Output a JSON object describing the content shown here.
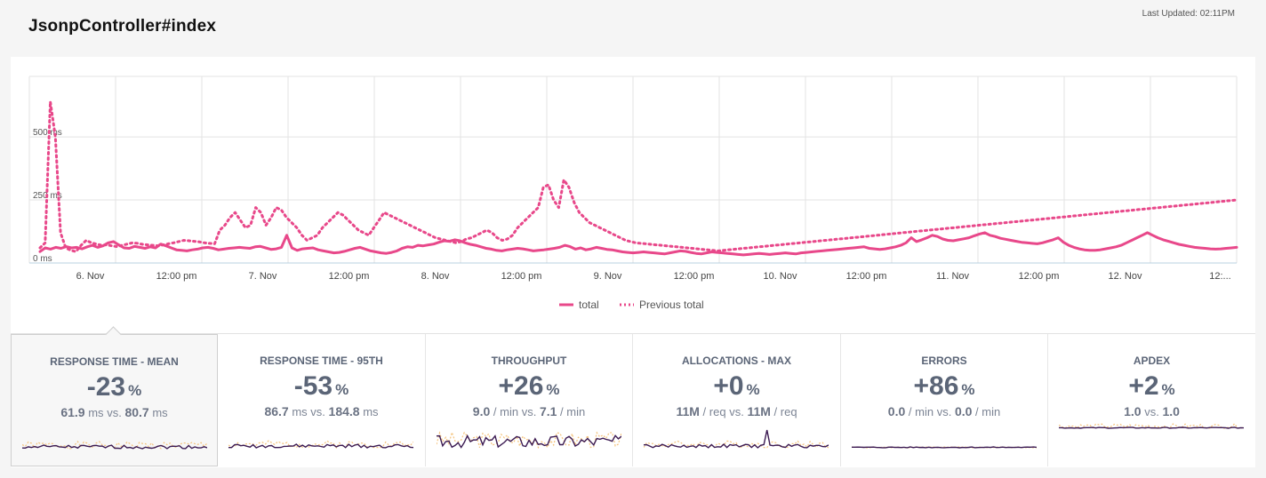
{
  "header": {
    "title": "JsonpController#index",
    "last_updated": "Last Updated: 02:11PM"
  },
  "chart_data": {
    "type": "line",
    "y_ticks": [
      {
        "v": 0,
        "label": "0 ms"
      },
      {
        "v": 250,
        "label": "250 ms"
      },
      {
        "v": 500,
        "label": "500 ms"
      }
    ],
    "ylim": [
      0,
      740
    ],
    "x_ticks": [
      "6. Nov",
      "12:00 pm",
      "7. Nov",
      "12:00 pm",
      "8. Nov",
      "12:00 pm",
      "9. Nov",
      "12:00 pm",
      "10. Nov",
      "12:00 pm",
      "11. Nov",
      "12:00 pm",
      "12. Nov",
      "12:..."
    ],
    "grid": true,
    "legend_position": "bottom-center",
    "series": [
      {
        "name": "total",
        "style": "solid",
        "color": "#e8488a",
        "values": [
          45,
          60,
          55,
          62,
          58,
          65,
          60,
          62,
          56,
          64,
          70,
          62,
          68,
          80,
          85,
          72,
          60,
          58,
          66,
          62,
          58,
          64,
          60,
          75,
          68,
          60,
          52,
          50,
          48,
          52,
          55,
          60,
          62,
          58,
          52,
          55,
          58,
          60,
          62,
          60,
          58,
          64,
          66,
          60,
          54,
          56,
          62,
          110,
          60,
          50,
          56,
          58,
          60,
          52,
          48,
          44,
          40,
          42,
          46,
          52,
          58,
          62,
          55,
          48,
          44,
          40,
          38,
          42,
          48,
          58,
          64,
          62,
          70,
          68,
          72,
          75,
          82,
          88,
          86,
          92,
          88,
          80,
          74,
          70,
          64,
          58,
          55,
          50,
          48,
          52,
          55,
          58,
          56,
          52,
          48,
          50,
          52,
          55,
          58,
          62,
          70,
          65,
          55,
          60,
          52,
          56,
          62,
          58,
          54,
          52,
          48,
          44,
          42,
          40,
          42,
          44,
          42,
          40,
          38,
          36,
          40,
          44,
          48,
          46,
          42,
          38,
          36,
          40,
          44,
          42,
          40,
          38,
          36,
          34,
          32,
          34,
          36,
          38,
          36,
          34,
          36,
          38,
          40,
          38,
          36,
          40,
          42,
          44,
          46,
          48,
          50,
          52,
          54,
          56,
          58,
          60,
          62,
          64,
          58,
          56,
          54,
          56,
          60,
          64,
          70,
          80,
          100,
          85,
          92,
          100,
          110,
          105,
          95,
          90,
          88,
          92,
          96,
          100,
          108,
          115,
          120,
          110,
          105,
          98,
          94,
          90,
          86,
          82,
          80,
          78,
          76,
          80,
          86,
          92,
          100,
          82,
          70,
          62,
          56,
          52,
          50,
          50,
          52,
          56,
          60,
          64,
          70,
          80,
          90,
          100,
          110,
          120,
          110,
          100,
          92,
          86,
          80,
          74,
          70,
          66,
          62,
          60,
          58,
          56,
          55,
          56,
          58,
          60,
          62
        ]
      },
      {
        "name": "Previous total",
        "style": "dotted",
        "color": "#e8488a",
        "values": [
          60,
          80,
          640,
          500,
          120,
          60,
          50,
          45,
          70,
          90,
          80,
          75,
          70,
          72,
          68,
          65,
          70,
          75,
          80,
          78,
          74,
          72,
          70,
          68,
          72,
          76,
          80,
          85,
          90,
          88,
          86,
          84,
          80,
          78,
          76,
          130,
          150,
          180,
          200,
          170,
          140,
          150,
          220,
          200,
          150,
          180,
          220,
          210,
          180,
          160,
          140,
          110,
          90,
          100,
          110,
          140,
          160,
          180,
          200,
          190,
          170,
          150,
          130,
          120,
          110,
          140,
          170,
          200,
          190,
          180,
          170,
          160,
          150,
          140,
          130,
          120,
          110,
          100,
          95,
          90,
          85,
          80,
          85,
          95,
          100,
          110,
          120,
          130,
          120,
          100,
          90,
          95,
          110,
          140,
          160,
          180,
          200,
          220,
          300,
          310,
          250,
          220,
          330,
          300,
          240,
          200,
          180,
          160,
          150,
          140,
          130,
          120,
          110,
          100,
          90,
          85,
          80,
          78,
          76,
          74,
          72,
          70,
          68,
          66,
          64,
          62,
          60,
          58,
          56,
          54,
          52,
          50,
          48,
          50,
          52,
          54,
          56,
          58,
          60,
          62,
          64,
          66,
          68,
          70,
          72,
          74,
          76,
          78,
          80,
          82,
          84,
          86,
          88,
          90,
          92,
          94,
          96,
          98,
          100,
          102,
          104,
          106,
          108,
          110,
          112,
          114,
          116,
          118,
          120,
          122,
          124,
          126,
          128,
          130,
          132,
          134,
          136,
          138,
          140,
          142,
          144,
          146,
          148,
          150,
          152,
          154,
          156,
          158,
          160,
          162,
          164,
          166,
          168,
          170,
          172,
          174,
          176,
          178,
          180,
          182,
          184,
          186,
          188,
          190,
          192,
          194,
          196,
          198,
          200,
          202,
          204,
          206,
          208,
          210,
          212,
          214,
          216,
          218,
          220,
          222,
          224,
          226,
          228,
          230,
          232,
          234,
          236,
          238,
          240,
          242,
          244,
          246,
          248,
          250
        ]
      }
    ]
  },
  "metrics": [
    {
      "label": "RESPONSE TIME - MEAN",
      "change": "-23",
      "pct": "%",
      "a": "61.9",
      "a_unit": "ms",
      "vs": "vs.",
      "b": "80.7",
      "b_unit": "ms"
    },
    {
      "label": "RESPONSE TIME - 95TH",
      "change": "-53",
      "pct": "%",
      "a": "86.7",
      "a_unit": "ms",
      "vs": "vs.",
      "b": "184.8",
      "b_unit": "ms"
    },
    {
      "label": "THROUGHPUT",
      "change": "+26",
      "pct": "%",
      "a": "9.0",
      "a_unit": "/ min",
      "vs": "vs.",
      "b": "7.1",
      "b_unit": "/ min"
    },
    {
      "label": "ALLOCATIONS - MAX",
      "change": "+0",
      "pct": "%",
      "a": "11M",
      "a_unit": "/ req",
      "vs": "vs.",
      "b": "11M",
      "b_unit": "/ req"
    },
    {
      "label": "ERRORS",
      "change": "+86",
      "pct": "%",
      "a": "0.0",
      "a_unit": "/ min",
      "vs": "vs.",
      "b": "0.0",
      "b_unit": "/ min"
    },
    {
      "label": "APDEX",
      "change": "+2",
      "pct": "%",
      "a": "1.0",
      "a_unit": "",
      "vs": "vs.",
      "b": "1.0",
      "b_unit": ""
    }
  ],
  "colors": {
    "accent": "#e8488a",
    "current_spark": "#3b1a52",
    "previous_spark": "#f4c27a",
    "grid": "#e3e3e3",
    "axis": "#b8d0e0"
  }
}
